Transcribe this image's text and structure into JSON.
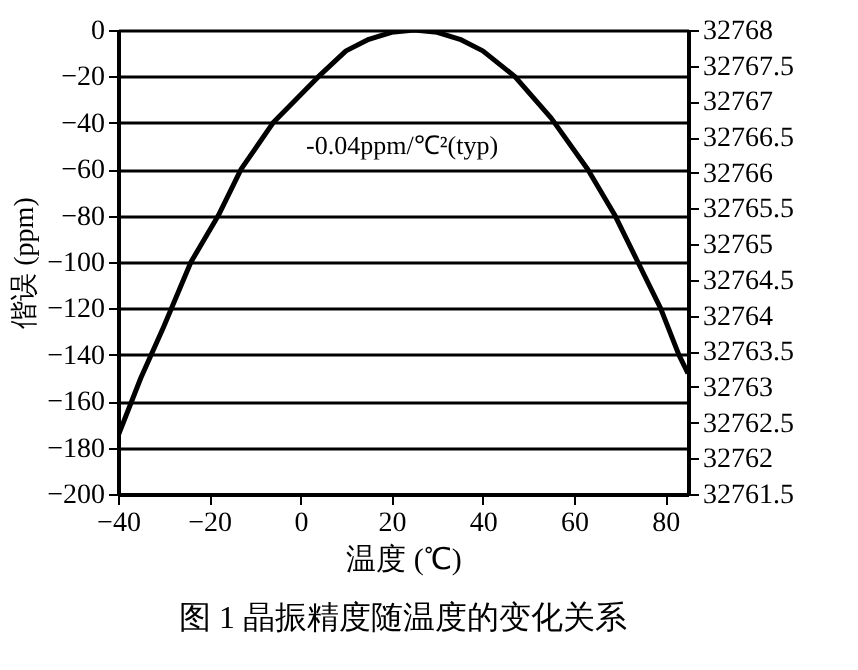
{
  "chart_data": {
    "type": "line",
    "title": "图 1   晶振精度随温度的变化关系",
    "xlabel": "温度 (℃)",
    "ylabel": "偕误 (ppm)",
    "annotations": [
      "-0.04ppm/℃²(typ)"
    ],
    "x": [
      -40,
      -35,
      -30,
      -24,
      -18,
      -13,
      -6,
      4,
      10,
      15,
      20,
      25,
      30,
      35,
      40,
      47,
      55,
      63,
      69,
      74,
      79,
      83,
      85
    ],
    "series": [
      {
        "color": "#000000",
        "values": [
          -175,
          -150,
          -128,
          -100,
          -80,
          -60,
          -40,
          -20,
          -9,
          -4,
          -1,
          0,
          -1,
          -4,
          -9,
          -20,
          -38,
          -60,
          -80,
          -100,
          -120,
          -140,
          -148
        ]
      }
    ],
    "xlim": [
      -40,
      85
    ],
    "xticks": [
      -40,
      -20,
      0,
      20,
      40,
      60,
      80
    ],
    "ylim": [
      -200,
      0
    ],
    "yticks": [
      -200,
      -180,
      -160,
      -140,
      -120,
      -100,
      -80,
      -60,
      -40,
      -20,
      0
    ],
    "y2lim": [
      32761.5,
      32768
    ],
    "y2ticks": [
      32761.5,
      32762,
      32762.5,
      32763,
      32763.5,
      32764,
      32764.5,
      32765,
      32765.5,
      32766,
      32766.5,
      32767,
      32767.5,
      32768
    ],
    "grid": "y",
    "marker": "none",
    "line_style": "solid"
  }
}
